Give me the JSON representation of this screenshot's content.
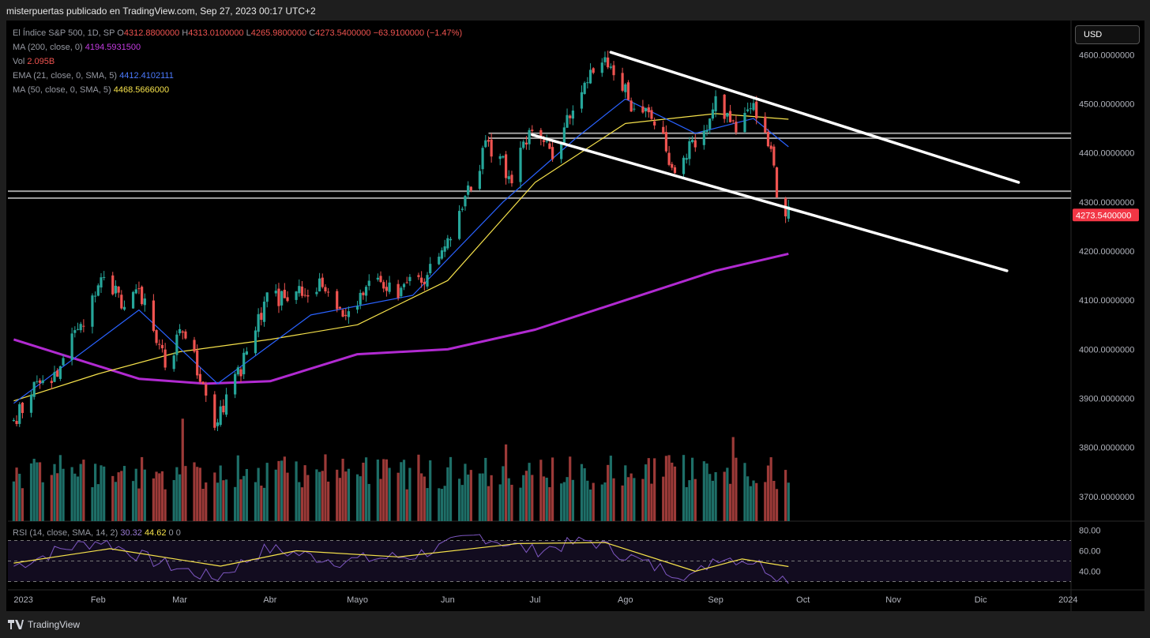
{
  "header": {
    "publisher": "misterpuertas publicado en TradingView.com, Sep 27, 2023 00:17 UTC+2"
  },
  "currency": "USD",
  "legend": {
    "symbol": "El Índice S&P 500, 1D, SP",
    "open_label": "O",
    "open": "4312.8800000",
    "high_label": "H",
    "high": "4313.0100000",
    "low_label": "L",
    "low": "4265.9800000",
    "close_label": "C",
    "close": "4273.5400000",
    "change": "−63.9100000 (−1.47%)",
    "ma200_label": "MA (200, close, 0)",
    "ma200": "4194.5931500",
    "vol_label": "Vol",
    "vol": "2.095B",
    "ema21_label": "EMA (21, close, 0, SMA, 5)",
    "ema21": "4412.4102111",
    "ma50_label": "MA (50, close, 0, SMA, 5)",
    "ma50": "4468.5666000",
    "rsi_label": "RSI (14, close, SMA, 14, 2)",
    "rsi1": "30.32",
    "rsi2": "44.62",
    "rsi3": "0",
    "rsi4": "0"
  },
  "last_price_tag": "4273.5400000",
  "footer": {
    "brand": "TradingView"
  },
  "colors": {
    "up": "#26a69a",
    "down": "#ef5350",
    "ema": "#2962ff",
    "ma50": "#f6e24b",
    "ma200": "#b12ad1",
    "rsi": "#7e57c2",
    "rsi_ma": "#f6e24b"
  },
  "chart_data": {
    "type": "candlestick",
    "title": "El Índice S&P 500, 1D, SP",
    "x_tick_labels": [
      "2023",
      "Feb",
      "Mar",
      "Abr",
      "Mayo",
      "Jun",
      "Jul",
      "Ago",
      "Sep",
      "Oct",
      "Nov",
      "Dic",
      "2024"
    ],
    "y_tick_labels": [
      "4600.0000000",
      "4500.0000000",
      "4400.0000000",
      "4300.0000000",
      "4200.0000000",
      "4100.0000000",
      "4000.0000000",
      "3900.0000000",
      "3800.0000000",
      "3700.0000000"
    ],
    "y_ticks": [
      4600,
      4500,
      4400,
      4300,
      4200,
      4100,
      4000,
      3900,
      3800,
      3700
    ],
    "ylim": [
      3650,
      4660
    ],
    "xlim": [
      "2023-01-01",
      "2024-01-01"
    ],
    "price_path": [
      [
        "2023-01-03",
        3850
      ],
      [
        "2023-01-10",
        3920
      ],
      [
        "2023-01-18",
        3950
      ],
      [
        "2023-01-26",
        4050
      ],
      [
        "2023-02-02",
        4160
      ],
      [
        "2023-02-10",
        4090
      ],
      [
        "2023-02-16",
        4110
      ],
      [
        "2023-02-24",
        3980
      ],
      [
        "2023-03-03",
        4040
      ],
      [
        "2023-03-09",
        3930
      ],
      [
        "2023-03-13",
        3855
      ],
      [
        "2023-03-22",
        3960
      ],
      [
        "2023-03-31",
        4100
      ],
      [
        "2023-04-12",
        4120
      ],
      [
        "2023-04-20",
        4135
      ],
      [
        "2023-04-26",
        4055
      ],
      [
        "2023-05-05",
        4140
      ],
      [
        "2023-05-16",
        4120
      ],
      [
        "2023-05-25",
        4150
      ],
      [
        "2023-06-05",
        4280
      ],
      [
        "2023-06-15",
        4420
      ],
      [
        "2023-06-23",
        4350
      ],
      [
        "2023-06-30",
        4450
      ],
      [
        "2023-07-07",
        4400
      ],
      [
        "2023-07-19",
        4560
      ],
      [
        "2023-07-27",
        4580
      ],
      [
        "2023-08-03",
        4500
      ],
      [
        "2023-08-10",
        4470
      ],
      [
        "2023-08-18",
        4370
      ],
      [
        "2023-08-28",
        4440
      ],
      [
        "2023-09-01",
        4520
      ],
      [
        "2023-09-07",
        4450
      ],
      [
        "2023-09-14",
        4500
      ],
      [
        "2023-09-20",
        4400
      ],
      [
        "2023-09-22",
        4320
      ],
      [
        "2023-09-26",
        4273.54
      ]
    ],
    "ma200": [
      [
        "2023-01-03",
        4020
      ],
      [
        "2023-02-15",
        3940
      ],
      [
        "2023-03-10",
        3930
      ],
      [
        "2023-04-01",
        3935
      ],
      [
        "2023-05-01",
        3990
      ],
      [
        "2023-06-01",
        4000
      ],
      [
        "2023-07-01",
        4040
      ],
      [
        "2023-08-01",
        4100
      ],
      [
        "2023-09-01",
        4160
      ],
      [
        "2023-09-26",
        4194.59
      ]
    ],
    "ma50": [
      [
        "2023-01-03",
        3895
      ],
      [
        "2023-02-01",
        3950
      ],
      [
        "2023-03-01",
        3995
      ],
      [
        "2023-04-01",
        4020
      ],
      [
        "2023-05-01",
        4050
      ],
      [
        "2023-06-01",
        4140
      ],
      [
        "2023-07-01",
        4340
      ],
      [
        "2023-08-01",
        4460
      ],
      [
        "2023-09-01",
        4480
      ],
      [
        "2023-09-26",
        4468.57
      ]
    ],
    "ema21": [
      [
        "2023-01-03",
        3890
      ],
      [
        "2023-02-15",
        4080
      ],
      [
        "2023-03-14",
        3930
      ],
      [
        "2023-04-15",
        4070
      ],
      [
        "2023-05-20",
        4110
      ],
      [
        "2023-06-20",
        4300
      ],
      [
        "2023-07-15",
        4430
      ],
      [
        "2023-08-01",
        4510
      ],
      [
        "2023-08-25",
        4440
      ],
      [
        "2023-09-14",
        4470
      ],
      [
        "2023-09-26",
        4412.41
      ]
    ],
    "trendlines": [
      {
        "from": [
          "2023-07-27",
          4605
        ],
        "to": [
          "2023-12-14",
          4340
        ]
      },
      {
        "from": [
          "2023-06-30",
          4437
        ],
        "to": [
          "2023-12-10",
          4160
        ]
      }
    ],
    "horizontal_levels": [
      {
        "from": "2023-06-15",
        "values": [
          4440,
          4430
        ]
      },
      {
        "from": "2023-01-01",
        "values": [
          4322,
          4308
        ]
      }
    ],
    "rsi": {
      "y_tick_labels": [
        "80.00",
        "60.00",
        "40.00"
      ],
      "y_ticks": [
        80,
        60,
        40
      ],
      "bands": [
        70,
        50,
        30
      ],
      "ylim": [
        25,
        85
      ],
      "path": [
        [
          "2023-01-03",
          45
        ],
        [
          "2023-01-20",
          62
        ],
        [
          "2023-02-02",
          70
        ],
        [
          "2023-02-20",
          50
        ],
        [
          "2023-03-13",
          33
        ],
        [
          "2023-03-31",
          62
        ],
        [
          "2023-04-25",
          50
        ],
        [
          "2023-05-20",
          55
        ],
        [
          "2023-06-12",
          75
        ],
        [
          "2023-06-30",
          60
        ],
        [
          "2023-07-20",
          70
        ],
        [
          "2023-08-10",
          45
        ],
        [
          "2023-08-25",
          35
        ],
        [
          "2023-09-01",
          55
        ],
        [
          "2023-09-14",
          50
        ],
        [
          "2023-09-26",
          30.32
        ]
      ],
      "ma_path": [
        [
          "2023-01-03",
          48
        ],
        [
          "2023-02-05",
          62
        ],
        [
          "2023-03-15",
          45
        ],
        [
          "2023-04-10",
          60
        ],
        [
          "2023-05-15",
          54
        ],
        [
          "2023-06-25",
          67
        ],
        [
          "2023-07-25",
          68
        ],
        [
          "2023-08-25",
          40
        ],
        [
          "2023-09-10",
          52
        ],
        [
          "2023-09-26",
          44.62
        ]
      ]
    }
  }
}
